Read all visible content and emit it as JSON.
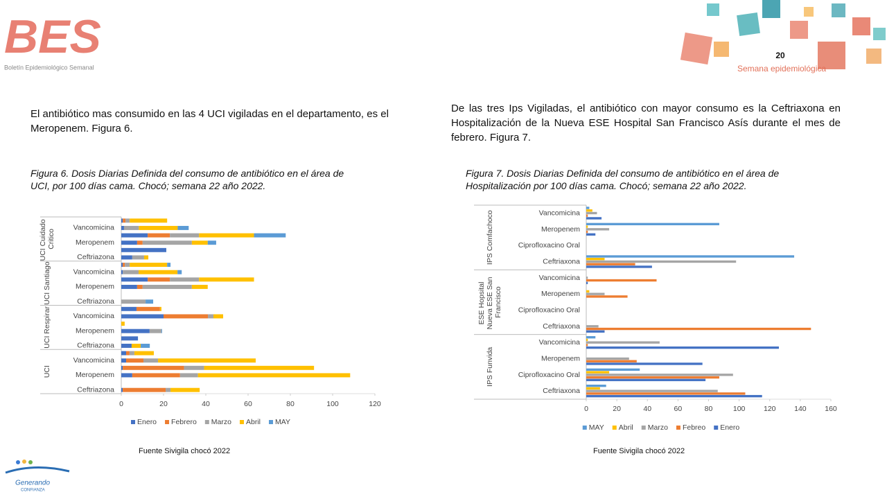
{
  "header": {
    "logo_text": "BES",
    "logo_subtitle": "Boletín Epidemiológico Semanal",
    "page_number": "20",
    "week_label": "Semana epidemiológica"
  },
  "left": {
    "paragraph": "El antibiótico mas consumido en las 4 UCI vigiladas en el departamento, es el Meropenem. Figura 6."
  },
  "right": {
    "paragraph": "De las tres Ips Vigiladas, el antibiótico con mayor consumo es la Ceftriaxona en Hospitalización de la Nueva ESE Hospital San Francisco Asís durante el mes de febrero. Figura 7."
  },
  "footer": {
    "logo_line1": "Generando",
    "logo_line2": "CONFIANZA"
  },
  "chart_data": [
    {
      "type": "bar",
      "stacked": true,
      "title": "Figura 6. Dosis Diarias Definida del consumo de antibiótico en el área de UCI, por 100 días cama. Chocó; semana 22 año 2022.",
      "source": "Fuente Sivigila chocó 2022",
      "groups": [
        {
          "name": "UCI Cuidado Critico",
          "categories": [
            null,
            "Vancomicina",
            null,
            "Meropenem",
            null,
            "Ceftriazona"
          ]
        },
        {
          "name": "UCI Santiago",
          "categories": [
            null,
            "Vancomicina",
            null,
            "Meropenem",
            null,
            "Ceftriazona"
          ]
        },
        {
          "name": "UCI Respirar",
          "categories": [
            null,
            "Vancomicina",
            null,
            "Meropenem",
            null,
            "Ceftriazona"
          ]
        },
        {
          "name": "UCI",
          "categories": [
            null,
            "Vancomicina",
            null,
            "Meropenem",
            null,
            "Ceftriazona"
          ]
        }
      ],
      "series": [
        {
          "name": "Enero",
          "color": "#4472c4",
          "values": [
            0.7,
            1.3,
            12.5,
            7.5,
            21.3,
            5.2,
            0.7,
            0.7,
            12.5,
            7.5,
            0,
            0,
            7.2,
            20,
            0,
            13.4,
            7.9,
            4.9,
            2.3,
            2.3,
            0.7,
            5.2,
            0,
            0.7
          ]
        },
        {
          "name": "Febrero",
          "color": "#ed7d31",
          "values": [
            1.3,
            0,
            10.5,
            2.6,
            0,
            0,
            1,
            0,
            10.5,
            2.6,
            0,
            0,
            11.1,
            21,
            0,
            0,
            0,
            0,
            1.6,
            8.2,
            29,
            22.6,
            0,
            20.3
          ]
        },
        {
          "name": "Marzo",
          "color": "#a5a5a5",
          "values": [
            2,
            7,
            13.8,
            23.3,
            0,
            5.6,
            2.3,
            7.5,
            13.8,
            23.3,
            0,
            11.5,
            0,
            2.6,
            0,
            5.6,
            0,
            0,
            2.3,
            6.9,
            9.5,
            8.5,
            0,
            2.3
          ]
        },
        {
          "name": "Abril",
          "color": "#ffc000",
          "values": [
            17.7,
            18.4,
            26,
            7.5,
            0,
            2,
            17.7,
            18.4,
            26,
            7.5,
            0,
            0,
            0.7,
            4.6,
            1.6,
            0,
            0,
            4.3,
            9.2,
            46.2,
            52,
            72,
            0,
            13.8
          ]
        },
        {
          "name": "MAY",
          "color": "#5b9bd5",
          "values": [
            0,
            5.2,
            15,
            4,
            0,
            0,
            1.6,
            2,
            0,
            0,
            0,
            3.6,
            0,
            0,
            0,
            0.3,
            0,
            4.3,
            0,
            0,
            0,
            0,
            0,
            0
          ]
        }
      ],
      "xlim": [
        0,
        120
      ],
      "xticks": [
        0,
        20,
        40,
        60,
        80,
        100,
        120
      ]
    },
    {
      "type": "bar",
      "stacked": false,
      "title": "Figura 7. Dosis Diarias Definida del consumo de antibiótico en el área de Hospitalización por 100 días cama. Chocó; semana 22 año 2022.",
      "source": "Fuente Sivigila chocó 2022",
      "groups": [
        {
          "name": "IPS Comfachoco",
          "categories": [
            "Vancomicina",
            "Meropenem",
            "Ciprofloxacino Oral",
            "Ceftriaxona"
          ]
        },
        {
          "name": "ESE Hopsital Nueva ESE San Francisco",
          "categories": [
            "Vancomicina",
            "Meropenem",
            "Ciprofloxacino Oral",
            "Ceftriaxona"
          ]
        },
        {
          "name": "IPS Funvida",
          "categories": [
            "Vancomicina",
            "Meropenem",
            "Ciprofloxacino Oral",
            "Ceftriaxona"
          ]
        }
      ],
      "series": [
        {
          "name": "MAY",
          "color": "#5b9bd5",
          "values": [
            2,
            87,
            0,
            136,
            0,
            0,
            0,
            0,
            6,
            0,
            35,
            13
          ]
        },
        {
          "name": "Abril",
          "color": "#ffc000",
          "values": [
            4,
            1,
            0,
            12,
            0,
            2,
            0,
            0,
            1,
            0,
            15,
            9
          ]
        },
        {
          "name": "Marzo",
          "color": "#a5a5a5",
          "values": [
            7,
            15,
            0,
            98,
            1,
            12,
            0,
            8,
            48,
            28,
            96,
            86
          ]
        },
        {
          "name": "Febreo",
          "color": "#ed7d31",
          "values": [
            1,
            1,
            0,
            32,
            46,
            27,
            0,
            147,
            1,
            33,
            87,
            104
          ]
        },
        {
          "name": "Enero",
          "color": "#4472c4",
          "values": [
            10,
            6,
            0,
            43,
            1,
            0,
            0,
            12,
            126,
            76,
            78,
            115
          ]
        }
      ],
      "xlim": [
        0,
        160
      ],
      "xticks": [
        0,
        20,
        40,
        60,
        80,
        100,
        120,
        140,
        160
      ]
    }
  ]
}
